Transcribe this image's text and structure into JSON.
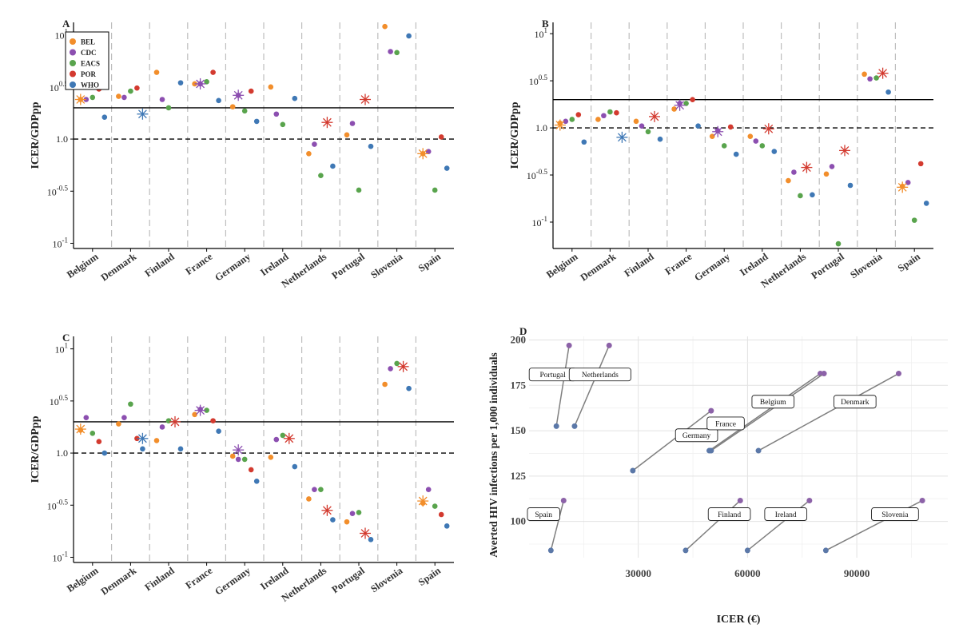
{
  "colors": {
    "BEL": "#f28e2b",
    "CDC": "#8c4fb0",
    "EACS": "#59a44d",
    "POR": "#d33a2f",
    "WHO": "#3f78b5",
    "line": "#7f7f7f",
    "point": "#5b78a8",
    "pointEnd": "#8c62a8"
  },
  "legend": [
    "BEL",
    "CDC",
    "EACS",
    "POR",
    "WHO"
  ],
  "chart_data": [
    {
      "type": "scatter",
      "label": "A",
      "ylabel": "ICER/GDPpp",
      "xlabel": "",
      "scale": "log10",
      "ylim": [
        -1.05,
        1.12
      ],
      "yticks": [
        {
          "v": 1,
          "base": "10",
          "exp": "1",
          "plain": ""
        },
        {
          "v": 0.5,
          "base": "10",
          "exp": "0.5",
          "plain": ""
        },
        {
          "v": 0,
          "base": "",
          "exp": "",
          "plain": "1.0"
        },
        {
          "v": -0.5,
          "base": "10",
          "exp": "-0.5",
          "plain": ""
        },
        {
          "v": -1,
          "base": "10",
          "exp": "-1",
          "plain": ""
        }
      ],
      "threshold_solid": 0.3,
      "threshold_dashed": 0,
      "legend_position": "top-left",
      "categories": [
        "Belgium",
        "Denmark",
        "Finland",
        "France",
        "Germany",
        "Ireland",
        "Netherlands",
        "Portugal",
        "Slovenia",
        "Spain"
      ],
      "series": [
        {
          "name": "BEL",
          "values": [
            0.38,
            0.41,
            0.64,
            0.53,
            0.31,
            0.5,
            -0.14,
            0.04,
            1.08,
            -0.14
          ]
        },
        {
          "name": "CDC",
          "values": [
            0.38,
            0.4,
            0.38,
            0.53,
            0.42,
            0.24,
            -0.05,
            0.15,
            0.84,
            -0.12
          ]
        },
        {
          "name": "EACS",
          "values": [
            0.4,
            0.46,
            0.3,
            0.55,
            0.27,
            0.14,
            -0.35,
            -0.49,
            0.83,
            -0.49
          ]
        },
        {
          "name": "POR",
          "values": [
            0.48,
            0.49,
            null,
            0.64,
            0.46,
            null,
            null,
            null,
            null,
            0.02
          ]
        },
        {
          "name": "WHO",
          "values": [
            0.21,
            null,
            0.54,
            0.37,
            0.17,
            0.39,
            -0.26,
            -0.07,
            0.99,
            -0.28
          ]
        }
      ],
      "asterisks": [
        {
          "category": "Belgium",
          "series": "BEL",
          "value": 0.38
        },
        {
          "category": "Denmark",
          "series": "WHO",
          "value": 0.24
        },
        {
          "category": "France",
          "series": "CDC",
          "value": 0.53
        },
        {
          "category": "Germany",
          "series": "CDC",
          "value": 0.42
        },
        {
          "category": "Netherlands",
          "series": "POR",
          "value": 0.16
        },
        {
          "category": "Portugal",
          "series": "POR",
          "value": 0.38
        },
        {
          "category": "Spain",
          "series": "BEL",
          "value": -0.14
        }
      ]
    },
    {
      "type": "scatter",
      "label": "B",
      "ylabel": "ICER/GDPpp",
      "xlabel": "",
      "scale": "log10",
      "ylim": [
        -1.28,
        1.12
      ],
      "yticks": [
        {
          "v": 1,
          "base": "10",
          "exp": "1",
          "plain": ""
        },
        {
          "v": 0.5,
          "base": "10",
          "exp": "0.5",
          "plain": ""
        },
        {
          "v": 0,
          "base": "",
          "exp": "",
          "plain": "1.0"
        },
        {
          "v": -0.5,
          "base": "10",
          "exp": "-0.5",
          "plain": ""
        },
        {
          "v": -1,
          "base": "10",
          "exp": "-1",
          "plain": ""
        }
      ],
      "threshold_solid": 0.3,
      "threshold_dashed": 0,
      "legend_position": "none",
      "categories": [
        "Belgium",
        "Denmark",
        "Finland",
        "France",
        "Germany",
        "Ireland",
        "Netherlands",
        "Portugal",
        "Slovenia",
        "Spain"
      ],
      "series": [
        {
          "name": "BEL",
          "values": [
            0.05,
            0.09,
            0.07,
            0.2,
            -0.09,
            -0.09,
            -0.56,
            -0.49,
            0.57,
            -0.62
          ]
        },
        {
          "name": "CDC",
          "values": [
            0.07,
            0.13,
            0.02,
            0.26,
            -0.03,
            -0.14,
            -0.47,
            -0.41,
            0.52,
            -0.58
          ]
        },
        {
          "name": "EACS",
          "values": [
            0.09,
            0.17,
            -0.04,
            0.26,
            -0.19,
            -0.19,
            -0.72,
            -1.23,
            0.53,
            -0.98
          ]
        },
        {
          "name": "POR",
          "values": [
            0.14,
            0.16,
            null,
            0.3,
            0.01,
            null,
            null,
            null,
            null,
            -0.38
          ]
        },
        {
          "name": "WHO",
          "values": [
            -0.15,
            null,
            -0.12,
            0.02,
            -0.28,
            -0.25,
            -0.71,
            -0.61,
            0.38,
            -0.8
          ]
        }
      ],
      "asterisks": [
        {
          "category": "Belgium",
          "series": "BEL",
          "value": 0.03
        },
        {
          "category": "Denmark",
          "series": "WHO",
          "value": -0.1
        },
        {
          "category": "Finland",
          "series": "POR",
          "value": 0.12
        },
        {
          "category": "France",
          "series": "CDC",
          "value": 0.24
        },
        {
          "category": "Germany",
          "series": "CDC",
          "value": -0.04
        },
        {
          "category": "Ireland",
          "series": "POR",
          "value": -0.01
        },
        {
          "category": "Netherlands",
          "series": "POR",
          "value": -0.42
        },
        {
          "category": "Portugal",
          "series": "POR",
          "value": -0.24
        },
        {
          "category": "Slovenia",
          "series": "POR",
          "value": 0.58
        },
        {
          "category": "Spain",
          "series": "BEL",
          "value": -0.63
        }
      ]
    },
    {
      "type": "scatter",
      "label": "C",
      "ylabel": "ICER/GDPpp",
      "xlabel": "",
      "scale": "log10",
      "ylim": [
        -1.05,
        1.12
      ],
      "yticks": [
        {
          "v": 1,
          "base": "10",
          "exp": "1",
          "plain": ""
        },
        {
          "v": 0.5,
          "base": "10",
          "exp": "0.5",
          "plain": ""
        },
        {
          "v": 0,
          "base": "",
          "exp": "",
          "plain": "1.0"
        },
        {
          "v": -0.5,
          "base": "10",
          "exp": "-0.5",
          "plain": ""
        },
        {
          "v": -1,
          "base": "10",
          "exp": "-1",
          "plain": ""
        }
      ],
      "threshold_solid": 0.3,
      "threshold_dashed": 0,
      "legend_position": "none",
      "categories": [
        "Belgium",
        "Denmark",
        "Finland",
        "France",
        "Germany",
        "Ireland",
        "Netherlands",
        "Portugal",
        "Slovenia",
        "Spain"
      ],
      "series": [
        {
          "name": "BEL",
          "values": [
            0.22,
            0.28,
            0.12,
            0.37,
            -0.03,
            -0.04,
            -0.44,
            -0.66,
            0.66,
            -0.48
          ]
        },
        {
          "name": "CDC",
          "values": [
            0.34,
            0.34,
            0.25,
            0.42,
            -0.06,
            0.13,
            -0.35,
            -0.58,
            0.81,
            -0.35
          ]
        },
        {
          "name": "EACS",
          "values": [
            0.19,
            0.47,
            0.31,
            0.41,
            -0.06,
            0.17,
            -0.35,
            -0.57,
            0.86,
            -0.51
          ]
        },
        {
          "name": "POR",
          "values": [
            0.11,
            0.14,
            null,
            0.31,
            -0.16,
            null,
            null,
            null,
            null,
            -0.59
          ]
        },
        {
          "name": "WHO",
          "values": [
            0.0,
            0.04,
            0.04,
            0.21,
            -0.27,
            -0.13,
            -0.64,
            -0.83,
            0.62,
            -0.7
          ]
        }
      ],
      "asterisks": [
        {
          "category": "Belgium",
          "series": "BEL",
          "value": 0.23
        },
        {
          "category": "Denmark",
          "series": "WHO",
          "value": 0.14
        },
        {
          "category": "Finland",
          "series": "POR",
          "value": 0.3
        },
        {
          "category": "France",
          "series": "CDC",
          "value": 0.41
        },
        {
          "category": "Germany",
          "series": "CDC",
          "value": 0.03
        },
        {
          "category": "Ireland",
          "series": "POR",
          "value": 0.14
        },
        {
          "category": "Netherlands",
          "series": "POR",
          "value": -0.55
        },
        {
          "category": "Portugal",
          "series": "POR",
          "value": -0.77
        },
        {
          "category": "Slovenia",
          "series": "POR",
          "value": 0.83
        },
        {
          "category": "Spain",
          "series": "BEL",
          "value": -0.46
        }
      ]
    },
    {
      "type": "scatter",
      "label": "D",
      "xlabel": "ICER (€)",
      "ylabel": "Averted HIV infections per 1,000 individuals",
      "xlim": [
        0,
        115000
      ],
      "ylim": [
        80,
        202
      ],
      "xticks": [
        30000,
        60000,
        90000
      ],
      "yticks": [
        100,
        125,
        150,
        175,
        200
      ],
      "grid": true,
      "segments": [
        {
          "name": "Portugal",
          "x1": 7500,
          "y1": 152.5,
          "x2": 11000,
          "y2": 197
        },
        {
          "name": "Netherlands",
          "x1": 12500,
          "y1": 152.5,
          "x2": 22000,
          "y2": 197
        },
        {
          "name": "Germany",
          "x1": 28500,
          "y1": 128,
          "x2": 50000,
          "y2": 161
        },
        {
          "name": "France",
          "x1": 49500,
          "y1": 139,
          "x2": 80000,
          "y2": 181.5
        },
        {
          "name": "Belgium",
          "x1": 50000,
          "y1": 139,
          "x2": 81000,
          "y2": 181.5
        },
        {
          "name": "Denmark",
          "x1": 63000,
          "y1": 139,
          "x2": 101500,
          "y2": 181.5
        },
        {
          "name": "Spain",
          "x1": 6000,
          "y1": 84,
          "x2": 9500,
          "y2": 111.5
        },
        {
          "name": "Finland",
          "x1": 43000,
          "y1": 84,
          "x2": 58000,
          "y2": 111.5
        },
        {
          "name": "Ireland",
          "x1": 60000,
          "y1": 84,
          "x2": 77000,
          "y2": 111.5
        },
        {
          "name": "Slovenia",
          "x1": 81500,
          "y1": 84,
          "x2": 108000,
          "y2": 111.5
        }
      ],
      "labels": [
        {
          "text": "Portugal",
          "x": 6500,
          "y": 181
        },
        {
          "text": "Netherlands",
          "x": 19500,
          "y": 181
        },
        {
          "text": "Germany",
          "x": 46000,
          "y": 147.5
        },
        {
          "text": "France",
          "x": 54000,
          "y": 154
        },
        {
          "text": "Belgium",
          "x": 67000,
          "y": 166
        },
        {
          "text": "Denmark",
          "x": 89500,
          "y": 166
        },
        {
          "text": "Spain",
          "x": 4000,
          "y": 104
        },
        {
          "text": "Finland",
          "x": 55000,
          "y": 104
        },
        {
          "text": "Ireland",
          "x": 70500,
          "y": 104
        },
        {
          "text": "Slovenia",
          "x": 100500,
          "y": 104
        }
      ]
    }
  ]
}
